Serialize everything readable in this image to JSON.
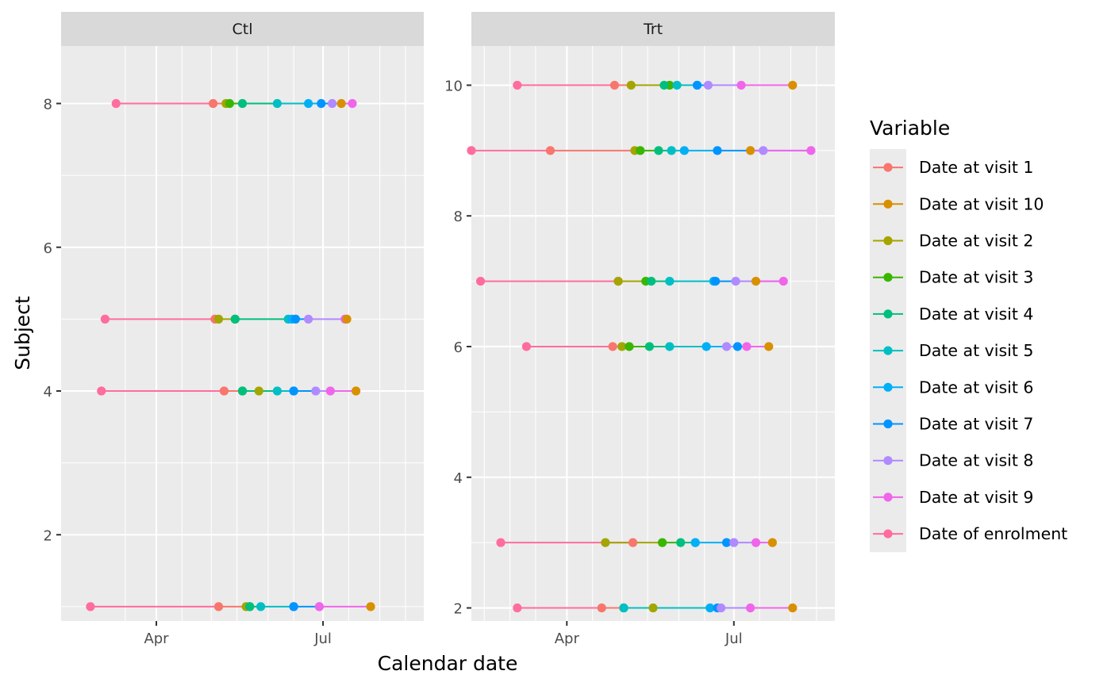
{
  "chart_data": {
    "type": "scatter",
    "title": "",
    "xlabel": "Calendar date",
    "ylabel": "Subject",
    "x_ticks": [
      "Apr",
      "Jul"
    ],
    "legend": {
      "title": "Variable",
      "placement": "right",
      "items": [
        {
          "label": "Date at visit 1",
          "color": "#F8766D"
        },
        {
          "label": "Date at visit 10",
          "color": "#D89000"
        },
        {
          "label": "Date at visit 2",
          "color": "#A3A500"
        },
        {
          "label": "Date at visit 3",
          "color": "#39B600"
        },
        {
          "label": "Date at visit 4",
          "color": "#00BF7D"
        },
        {
          "label": "Date at visit 5",
          "color": "#00BFC4"
        },
        {
          "label": "Date at visit 6",
          "color": "#00B0F6"
        },
        {
          "label": "Date at visit 7",
          "color": "#0094FF"
        },
        {
          "label": "Date at visit 8",
          "color": "#B08AFF"
        },
        {
          "label": "Date at visit 9",
          "color": "#F066EA"
        },
        {
          "label": "Date of enrolment",
          "color": "#FF6C9E"
        }
      ]
    },
    "order": [
      "Date of enrolment",
      "Date at visit 1",
      "Date at visit 2",
      "Date at visit 3",
      "Date at visit 4",
      "Date at visit 5",
      "Date at visit 6",
      "Date at visit 7",
      "Date at visit 8",
      "Date at visit 9",
      "Date at visit 10"
    ],
    "grid": true,
    "panels": [
      {
        "name": "Ctl",
        "xlim": [
          "2021-02-08",
          "2021-08-25"
        ],
        "x_breaks": [
          "2021-03-15",
          "2021-04-01",
          "2021-04-15",
          "2021-05-01",
          "2021-05-15",
          "2021-06-01",
          "2021-06-15",
          "2021-07-01",
          "2021-07-15",
          "2021-08-01",
          "2021-08-15"
        ],
        "x_tick_labels": [
          {
            "date": "2021-04-01",
            "label": "Apr"
          },
          {
            "date": "2021-07-01",
            "label": "Jul"
          }
        ],
        "ylim": [
          0.8,
          8.8
        ],
        "y_ticks": [
          2,
          4,
          6,
          8
        ],
        "subjects": [
          {
            "subject": 1,
            "dates": [
              "2021-02-24",
              "2021-05-05",
              "2021-05-20",
              "2021-05-22",
              "2021-05-22",
              "2021-05-28",
              "2021-06-15",
              "2021-06-15",
              "2021-06-29",
              "2021-06-29",
              "2021-07-27"
            ]
          },
          {
            "subject": 4,
            "dates": [
              "2021-03-02",
              "2021-05-08",
              "2021-05-27",
              "2021-05-18",
              "2021-05-18",
              "2021-06-06",
              "2021-06-15",
              "2021-06-15",
              "2021-06-27",
              "2021-07-05",
              "2021-07-19"
            ]
          },
          {
            "subject": 5,
            "dates": [
              "2021-03-04",
              "2021-05-03",
              "2021-05-05",
              "2021-05-14",
              "2021-05-14",
              "2021-06-12",
              "2021-06-14",
              "2021-06-16",
              "2021-06-23",
              "2021-07-13",
              "2021-07-14"
            ]
          },
          {
            "subject": 8,
            "dates": [
              "2021-03-10",
              "2021-05-02",
              "2021-05-09",
              "2021-05-11",
              "2021-05-18",
              "2021-06-06",
              "2021-06-23",
              "2021-06-30",
              "2021-07-06",
              "2021-07-17",
              "2021-07-11"
            ]
          }
        ]
      },
      {
        "name": "Trt",
        "xlim": [
          "2021-02-08",
          "2021-08-25"
        ],
        "x_breaks": [
          "2021-02-15",
          "2021-03-01",
          "2021-03-15",
          "2021-04-01",
          "2021-04-15",
          "2021-05-01",
          "2021-05-15",
          "2021-06-01",
          "2021-06-15",
          "2021-07-01",
          "2021-07-15",
          "2021-08-01",
          "2021-08-15"
        ],
        "x_tick_labels": [
          {
            "date": "2021-04-01",
            "label": "Apr"
          },
          {
            "date": "2021-07-01",
            "label": "Jul"
          }
        ],
        "ylim": [
          1.8,
          10.6
        ],
        "y_ticks": [
          2,
          4,
          6,
          8,
          10
        ],
        "subjects": [
          {
            "subject": 2,
            "dates": [
              "2021-03-05",
              "2021-04-20",
              "2021-05-18",
              "2021-05-02",
              "2021-05-02",
              "2021-05-02",
              "2021-06-18",
              "2021-06-22",
              "2021-06-24",
              "2021-07-10",
              "2021-08-02"
            ]
          },
          {
            "subject": 3,
            "dates": [
              "2021-02-24",
              "2021-05-07",
              "2021-04-22",
              "2021-05-23",
              "2021-06-02",
              "2021-06-10",
              "2021-06-10",
              "2021-06-27",
              "2021-07-01",
              "2021-07-13",
              "2021-07-22"
            ]
          },
          {
            "subject": 6,
            "dates": [
              "2021-03-10",
              "2021-04-26",
              "2021-05-01",
              "2021-05-05",
              "2021-05-16",
              "2021-05-27",
              "2021-06-16",
              "2021-07-03",
              "2021-06-27",
              "2021-07-08",
              "2021-07-20"
            ]
          },
          {
            "subject": 7,
            "dates": [
              "2021-02-13",
              "2021-04-29",
              "2021-04-29",
              "2021-05-14",
              "2021-05-17",
              "2021-05-27",
              "2021-06-20",
              "2021-06-21",
              "2021-07-02",
              "2021-07-28",
              "2021-07-13"
            ]
          },
          {
            "subject": 9,
            "dates": [
              "2021-02-08",
              "2021-03-23",
              "2021-05-08",
              "2021-05-11",
              "2021-05-21",
              "2021-05-28",
              "2021-06-04",
              "2021-06-22",
              "2021-07-17",
              "2021-08-12",
              "2021-07-10"
            ]
          },
          {
            "subject": 10,
            "dates": [
              "2021-03-05",
              "2021-04-27",
              "2021-05-06",
              "2021-05-27",
              "2021-05-24",
              "2021-05-31",
              "2021-06-11",
              "2021-06-11",
              "2021-06-17",
              "2021-07-05",
              "2021-08-02"
            ]
          }
        ]
      }
    ]
  }
}
